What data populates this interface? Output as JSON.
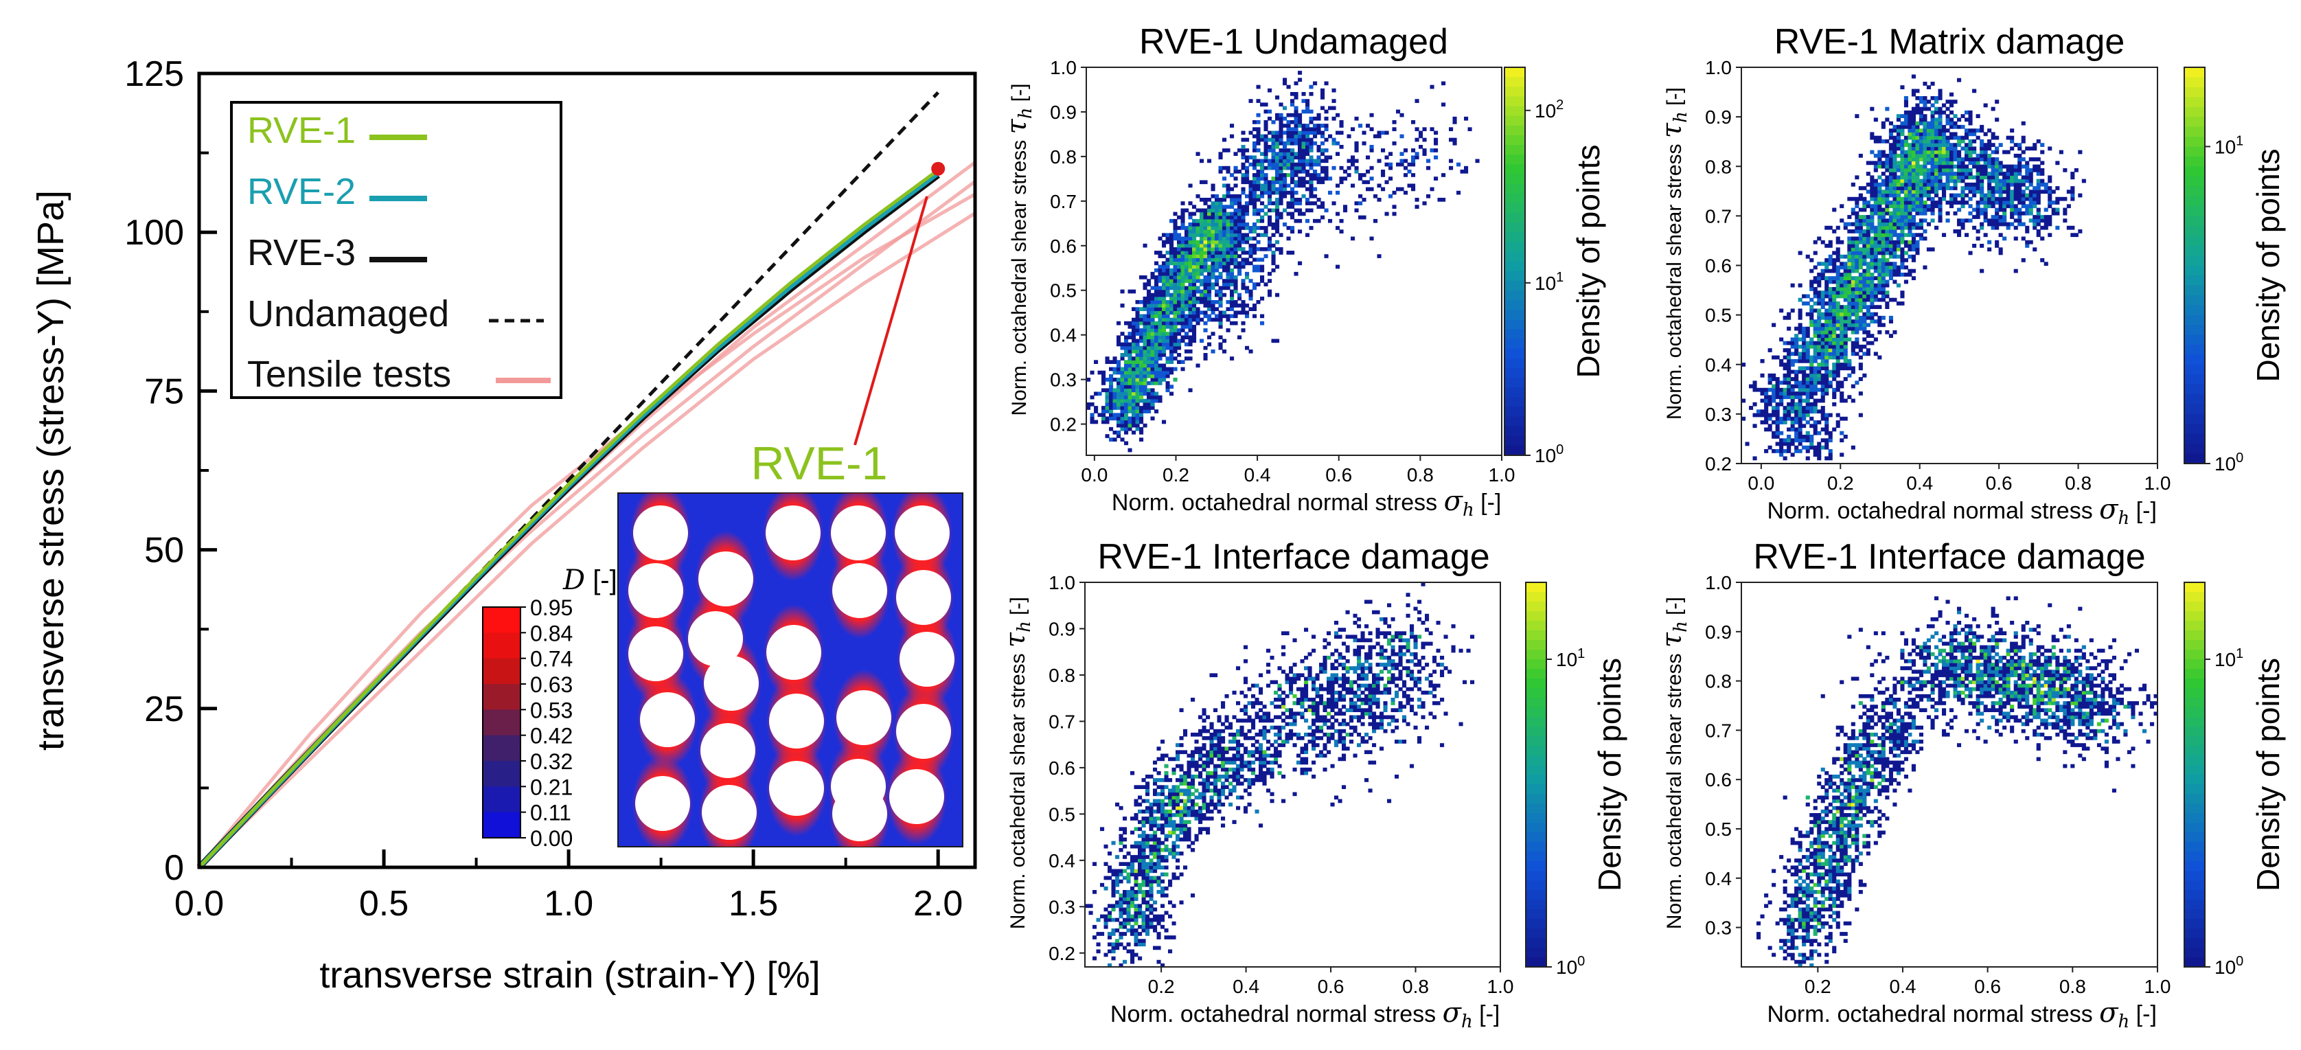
{
  "colors": {
    "rve1": "#8cc21e",
    "rve2": "#1a9fb0",
    "rve3": "#111111",
    "undamaged": "#111111",
    "tensile": "#f29a9a",
    "marker": "#e01b1b",
    "matrix": "#1f2fd8"
  },
  "chart_data": [
    {
      "id": "stress-strain",
      "type": "line",
      "title": "",
      "xlabel": "transverse strain  (strain-Y)  [%]",
      "ylabel": "transverse stress  (stress-Y)  [MPa]",
      "xlim": [
        0.0,
        2.1
      ],
      "ylim": [
        0,
        125
      ],
      "xticks": [
        "0.0",
        "0.5",
        "1.0",
        "1.5",
        "2.0"
      ],
      "yticks": [
        "0",
        "25",
        "50",
        "75",
        "100",
        "125"
      ],
      "series": [
        {
          "name": "Tensile tests",
          "style": "tensile",
          "x": [
            0,
            0.3,
            0.6,
            0.9,
            1.2,
            1.5,
            1.8,
            2.1
          ],
          "y": [
            0,
            19,
            37,
            53,
            68,
            82,
            95,
            108
          ]
        },
        {
          "name": "Tensile tests",
          "style": "tensile",
          "x": [
            0,
            0.3,
            0.6,
            0.9,
            1.2,
            1.5,
            1.8,
            2.1
          ],
          "y": [
            0,
            21,
            40,
            57,
            71,
            84,
            96,
            106
          ]
        },
        {
          "name": "Tensile tests",
          "style": "tensile",
          "x": [
            0,
            0.3,
            0.6,
            0.9,
            1.2,
            1.5,
            1.8,
            2.1
          ],
          "y": [
            0,
            18,
            36,
            54,
            70,
            85,
            98,
            111
          ]
        },
        {
          "name": "Tensile tests",
          "style": "tensile",
          "x": [
            0,
            0.3,
            0.6,
            0.9,
            1.2,
            1.5,
            1.8,
            2.1
          ],
          "y": [
            0,
            17,
            34,
            51,
            66,
            80,
            92,
            103
          ]
        },
        {
          "name": "Undamaged",
          "style": "undamaged",
          "x": [
            0,
            2.0
          ],
          "y": [
            0,
            122
          ]
        },
        {
          "name": "RVE-3",
          "style": "rve3",
          "x": [
            0,
            0.2,
            0.4,
            0.6,
            0.8,
            1.0,
            1.2,
            1.4,
            1.6,
            1.8,
            2.0
          ],
          "y": [
            0,
            12.2,
            24.3,
            36.3,
            48.2,
            59.8,
            70.8,
            81.3,
            91.0,
            100.2,
            109.0
          ]
        },
        {
          "name": "RVE-2",
          "style": "rve2",
          "x": [
            0,
            0.2,
            0.4,
            0.6,
            0.8,
            1.0,
            1.2,
            1.4,
            1.6,
            1.8,
            2.0
          ],
          "y": [
            0,
            12.2,
            24.4,
            36.5,
            48.4,
            60.0,
            71.1,
            81.6,
            91.4,
            100.6,
            109.3
          ]
        },
        {
          "name": "RVE-1",
          "style": "rve1",
          "x": [
            0,
            0.2,
            0.4,
            0.6,
            0.8,
            1.0,
            1.2,
            1.4,
            1.6,
            1.8,
            2.0
          ],
          "y": [
            0,
            12.3,
            24.5,
            36.7,
            48.7,
            60.3,
            71.5,
            82.1,
            92.0,
            101.2,
            109.8
          ]
        }
      ],
      "marker_point": {
        "x": 2.0,
        "y": 110
      },
      "legend": [
        "RVE-1",
        "RVE-2",
        "RVE-3",
        "Undamaged",
        "Tensile tests"
      ],
      "inset": {
        "title": "RVE-1",
        "colorbar_title": "D [-]",
        "colorbar_ticks": [
          "0.95",
          "0.84",
          "0.74",
          "0.63",
          "0.53",
          "0.42",
          "0.32",
          "0.21",
          "0.11",
          "0.00"
        ],
        "colorbar_colors": [
          "#ff1010",
          "#e81010",
          "#c81414",
          "#9a1a2a",
          "#6a1e4a",
          "#40206a",
          "#282088",
          "#1a1ab0",
          "#1010d8",
          "#0a0aff"
        ]
      }
    },
    {
      "id": "hist-undamaged",
      "type": "heatmap",
      "title": "RVE-1 Undamaged",
      "xlabel": "Norm. octahedral normal stress",
      "ylabel": "Norm. octahedral shear stress",
      "xsym": "σ",
      "xsub": "h",
      "ysym": "τ",
      "ysub": "h",
      "unit": "[-]",
      "xlim": [
        -0.02,
        1.0
      ],
      "ylim": [
        0.13,
        1.0
      ],
      "xticks": [
        0.0,
        0.2,
        0.4,
        0.6,
        0.8,
        1.0
      ],
      "yticks": [
        0.2,
        0.3,
        0.4,
        0.5,
        0.6,
        0.7,
        0.8,
        0.9,
        1.0
      ],
      "cbar_label": "Density of points",
      "cbar_ticks": {
        "base": [
          "10",
          "10",
          "10"
        ],
        "exp": [
          "0",
          "1",
          "2"
        ]
      },
      "clusters": [
        {
          "path": [
            [
              0.06,
              0.22
            ],
            [
              0.12,
              0.33
            ],
            [
              0.18,
              0.46
            ],
            [
              0.25,
              0.58
            ],
            [
              0.3,
              0.66
            ]
          ],
          "spread": [
            0.035,
            0.035
          ],
          "n": 2600
        },
        {
          "path": [
            [
              0.28,
              0.45
            ],
            [
              0.35,
              0.62
            ],
            [
              0.45,
              0.78
            ],
            [
              0.52,
              0.86
            ]
          ],
          "spread": [
            0.055,
            0.06
          ],
          "n": 1500
        },
        {
          "path": [
            [
              0.55,
              0.7
            ],
            [
              0.7,
              0.78
            ],
            [
              0.85,
              0.83
            ]
          ],
          "spread": [
            0.07,
            0.06
          ],
          "n": 220
        }
      ]
    },
    {
      "id": "hist-matrix",
      "type": "heatmap",
      "title": "RVE-1 Matrix damage",
      "xlabel": "Norm. octahedral normal stress",
      "ylabel": "Norm. octahedral shear stress",
      "xsym": "σ",
      "xsub": "h",
      "ysym": "τ",
      "ysub": "h",
      "unit": "[-]",
      "xlim": [
        -0.05,
        1.0
      ],
      "ylim": [
        0.2,
        1.0
      ],
      "xticks": [
        0.0,
        0.2,
        0.4,
        0.6,
        0.8,
        1.0
      ],
      "yticks": [
        0.2,
        0.3,
        0.4,
        0.5,
        0.6,
        0.7,
        0.8,
        0.9,
        1.0
      ],
      "cbar_label": "Density of points",
      "cbar_ticks": {
        "base": [
          "10",
          "10"
        ],
        "exp": [
          "0",
          "1"
        ]
      },
      "clusters": [
        {
          "path": [
            [
              0.12,
              0.38
            ],
            [
              0.2,
              0.5
            ],
            [
              0.28,
              0.62
            ],
            [
              0.36,
              0.75
            ],
            [
              0.42,
              0.86
            ]
          ],
          "spread": [
            0.045,
            0.05
          ],
          "n": 3200
        },
        {
          "path": [
            [
              0.4,
              0.85
            ],
            [
              0.5,
              0.8
            ],
            [
              0.6,
              0.75
            ],
            [
              0.7,
              0.72
            ]
          ],
          "spread": [
            0.06,
            0.05
          ],
          "n": 1200
        },
        {
          "path": [
            [
              0.02,
              0.36
            ],
            [
              0.08,
              0.3
            ],
            [
              0.15,
              0.25
            ]
          ],
          "spread": [
            0.04,
            0.04
          ],
          "n": 400
        }
      ]
    },
    {
      "id": "hist-interface-1",
      "type": "heatmap",
      "title": "RVE-1 Interface damage",
      "xlabel": "Norm. octahedral normal stress",
      "ylabel": "Norm. octahedral shear stress",
      "xsym": "σ",
      "xsub": "h",
      "ysym": "τ",
      "ysub": "h",
      "unit": "[-]",
      "xlim": [
        0.02,
        1.0
      ],
      "ylim": [
        0.17,
        1.0
      ],
      "xticks": [
        0.2,
        0.4,
        0.6,
        0.8,
        1.0
      ],
      "yticks": [
        0.2,
        0.3,
        0.4,
        0.5,
        0.6,
        0.7,
        0.8,
        0.9,
        1.0
      ],
      "cbar_label": "Density of points",
      "cbar_ticks": {
        "base": [
          "10",
          "10"
        ],
        "exp": [
          "0",
          "1"
        ]
      },
      "clusters": [
        {
          "path": [
            [
              0.1,
              0.22
            ],
            [
              0.15,
              0.35
            ],
            [
              0.2,
              0.48
            ],
            [
              0.28,
              0.57
            ],
            [
              0.4,
              0.63
            ]
          ],
          "spread": [
            0.04,
            0.05
          ],
          "n": 1300
        },
        {
          "path": [
            [
              0.4,
              0.65
            ],
            [
              0.55,
              0.72
            ],
            [
              0.7,
              0.78
            ],
            [
              0.78,
              0.85
            ]
          ],
          "spread": [
            0.07,
            0.07
          ],
          "n": 1100
        }
      ]
    },
    {
      "id": "hist-interface-2",
      "type": "heatmap",
      "title": "RVE-1 Interface damage",
      "xlabel": "Norm. octahedral normal stress",
      "ylabel": "Norm. octahedral shear stress",
      "xsym": "σ",
      "xsub": "h",
      "ysym": "τ",
      "ysub": "h",
      "unit": "[-]",
      "xlim": [
        0.02,
        1.0
      ],
      "ylim": [
        0.22,
        1.0
      ],
      "xticks": [
        0.2,
        0.4,
        0.6,
        0.8,
        1.0
      ],
      "yticks": [
        0.3,
        0.4,
        0.5,
        0.6,
        0.7,
        0.8,
        0.9,
        1.0
      ],
      "cbar_label": "Density of points",
      "cbar_ticks": {
        "base": [
          "10",
          "10"
        ],
        "exp": [
          "0",
          "1"
        ]
      },
      "clusters": [
        {
          "path": [
            [
              0.15,
              0.28
            ],
            [
              0.2,
              0.38
            ],
            [
              0.25,
              0.5
            ],
            [
              0.3,
              0.62
            ],
            [
              0.4,
              0.72
            ]
          ],
          "spread": [
            0.04,
            0.05
          ],
          "n": 1300
        },
        {
          "path": [
            [
              0.45,
              0.82
            ],
            [
              0.6,
              0.82
            ],
            [
              0.75,
              0.79
            ],
            [
              0.88,
              0.73
            ]
          ],
          "spread": [
            0.07,
            0.05
          ],
          "n": 1600
        }
      ]
    }
  ]
}
